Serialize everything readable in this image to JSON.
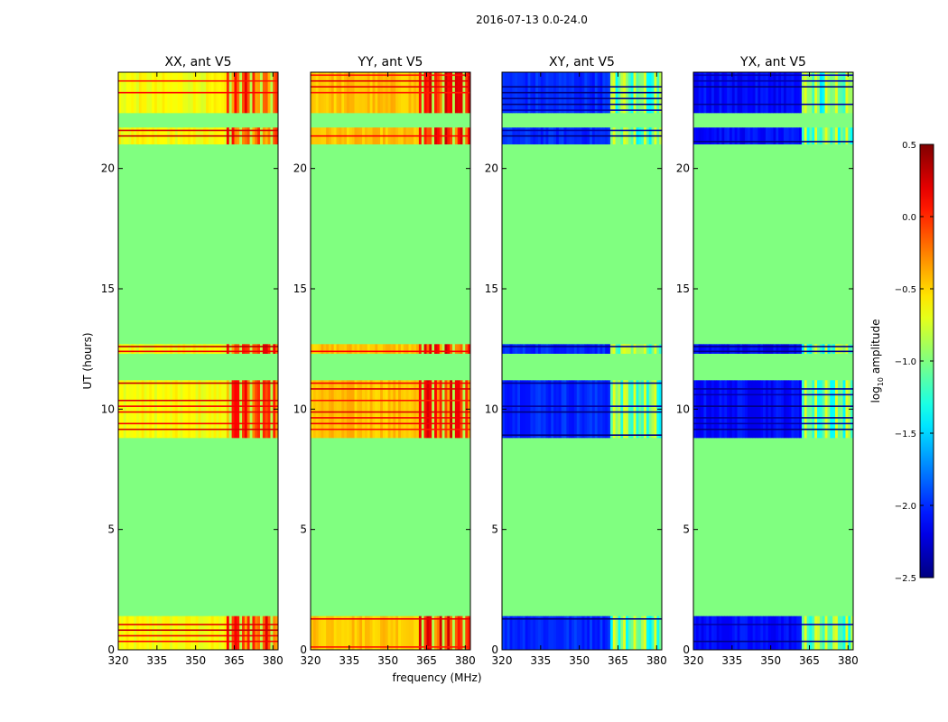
{
  "suptitle": "2016-07-13 0.0-24.0",
  "chart_data": {
    "type": "heatmap",
    "title": "2016-07-13 0.0-24.0",
    "xlabel": "frequency (MHz)",
    "ylabel": "UT (hours)",
    "xlim": [
      320,
      382
    ],
    "ylim": [
      0,
      24
    ],
    "xticks": [
      320,
      335,
      350,
      365,
      380
    ],
    "yticks": [
      0,
      5,
      10,
      15,
      20
    ],
    "panels": [
      {
        "name": "XX, ant V5",
        "pol": "XX"
      },
      {
        "name": "YY, ant V5",
        "pol": "YY"
      },
      {
        "name": "XY, ant V5",
        "pol": "XY"
      },
      {
        "name": "YX, ant V5",
        "pol": "YX"
      }
    ],
    "colorbar": {
      "label": "log10 amplitude",
      "label_base": "log",
      "label_sub": "10",
      "label_rest": " amplitude",
      "range": [
        -2.5,
        0.5
      ],
      "ticks": [
        "0.5",
        "0.0",
        "−0.5",
        "−1.0",
        "−1.5",
        "−2.0",
        "−2.5"
      ],
      "tick_values": [
        0.5,
        0.0,
        -0.5,
        -1.0,
        -1.5,
        -2.0,
        -2.5
      ],
      "colormap": "jet"
    },
    "background_value": -1.0,
    "data_blocks_ut": [
      [
        0.0,
        1.4
      ],
      [
        8.8,
        11.2
      ],
      [
        12.3,
        12.7
      ],
      [
        21.0,
        21.7
      ],
      [
        22.3,
        24.0
      ]
    ],
    "levels": {
      "XX": {
        "low_band": -0.65,
        "high_band": -0.1,
        "flag_lines": 0.2
      },
      "YY": {
        "low_band": -0.45,
        "high_band": -0.05,
        "flag_lines": 0.2
      },
      "XY": {
        "low_band": -2.0,
        "high_band": -1.1,
        "flag_lines": -2.5
      },
      "YX": {
        "low_band": -2.1,
        "high_band": -1.1,
        "flag_lines": -2.5
      }
    },
    "band_split_mhz": 362.5
  }
}
